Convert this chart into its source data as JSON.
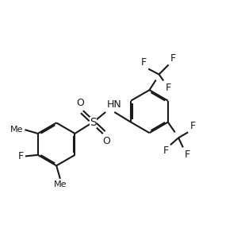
{
  "bg_color": "#ffffff",
  "bond_color": "#1a1a1a",
  "figsize": [
    3.04,
    2.93
  ],
  "dpi": 100,
  "lw": 1.5,
  "doff": 0.05,
  "fs": 9,
  "xlim": [
    0.0,
    9.5
  ],
  "ylim": [
    0.5,
    7.5
  ]
}
